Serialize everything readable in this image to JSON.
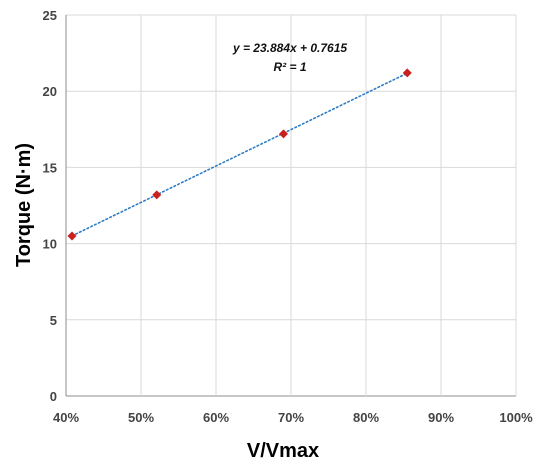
{
  "chart_data": {
    "type": "scatter",
    "xlabel": "V/Vmax",
    "ylabel": "Torque (N·m)",
    "xlim": [
      0.4,
      1.0
    ],
    "ylim": [
      0,
      25
    ],
    "x_ticks": [
      0.4,
      0.5,
      0.6,
      0.7,
      0.8,
      0.9,
      1.0
    ],
    "x_tick_labels": [
      "40%",
      "50%",
      "60%",
      "70%",
      "80%",
      "90%",
      "100%"
    ],
    "y_ticks": [
      0,
      5,
      10,
      15,
      20,
      25
    ],
    "y_tick_labels": [
      "0",
      "5",
      "10",
      "15",
      "20",
      "25"
    ],
    "grid": true,
    "series": [
      {
        "x": [
          0.408,
          0.521,
          0.69,
          0.855
        ],
        "y": [
          10.5,
          13.2,
          17.2,
          21.2
        ],
        "color": "#cc1f1f",
        "marker": "diamond"
      }
    ],
    "trendline": {
      "type": "linear",
      "slope": 23.884,
      "intercept": 0.7615,
      "x_range": [
        0.408,
        0.855
      ],
      "color": "#2e7cc4",
      "style": "dotted",
      "equation_label": "y = 23.884x + 0.7615",
      "r2_label": "R² = 1"
    }
  }
}
